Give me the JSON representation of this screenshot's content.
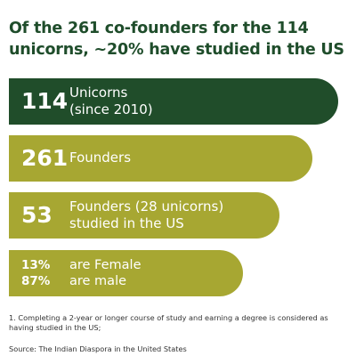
{
  "title": "Of the 261 co-founders for the 114 unicorns, ~20% have studied in the US",
  "chart_data": {
    "type": "bar",
    "orientation": "horizontal",
    "items": [
      {
        "value": "114",
        "label_line1": "Unicorns",
        "label_line2": "(since 2010)"
      },
      {
        "value": "261",
        "label_line1": "Founders",
        "label_line2": ""
      },
      {
        "value": "53",
        "label_line1": "Founders (28 unicorns)",
        "label_line2": "studied in the US"
      },
      {
        "value_line1": "13%",
        "value_line2": "87%",
        "label_line1": "are Female",
        "label_line2": "are male"
      }
    ],
    "colors": {
      "primary": "#204d2a",
      "secondary": "#a7a732",
      "title": "#1f4d2b"
    }
  },
  "footnote": "1. Completing a 2-year or longer course of study and earning a degree is considered as having studied in the US;",
  "source": "Source: The Indian Diaspora in the United States"
}
